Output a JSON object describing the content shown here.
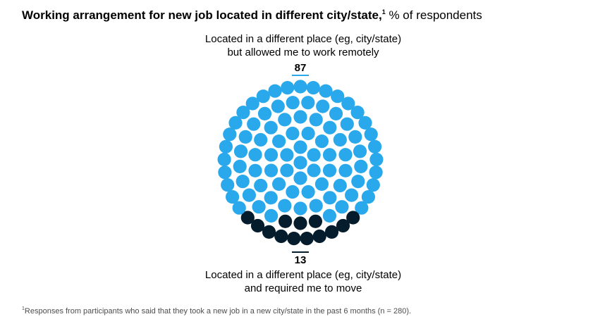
{
  "title": {
    "bold": "Working arrangement for new job located in different city/state,",
    "footnote_marker": "1",
    "regular": " % of respondents"
  },
  "chart_data": {
    "type": "dot-matrix",
    "unit": "% of respondents",
    "total_dots": 100,
    "series": [
      {
        "name": "Located in a different place (eg, city/state) but allowed me to work remotely",
        "label_line1": "Located in a different place (eg, city/state)",
        "label_line2": "but allowed me to work remotely",
        "value": 87,
        "value_label": "87",
        "color": "#29a8eb"
      },
      {
        "name": "Located in a different place (eg, city/state) and required me to move",
        "label_line1": "Located in a different place (eg, city/state)",
        "label_line2": "and required me to move",
        "value": 13,
        "value_label": "13",
        "color": "#051c2c"
      }
    ]
  },
  "footnote": {
    "marker": "1",
    "text": "Responses from participants who said that they took a new job in a new city/state in the past 6 months (n = 280)."
  }
}
